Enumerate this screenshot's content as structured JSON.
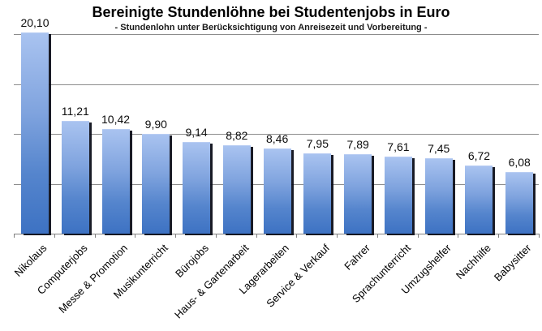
{
  "chart_data": {
    "type": "bar",
    "title": "Bereinigte Stundenlöhne bei Studentenjobs in Euro",
    "subtitle": "- Stundenlohn unter Berücksichtigung von Anreisezeit und Vorbereitung -",
    "categories": [
      "Nikolaus",
      "Computerjobs",
      "Messe & Promotion",
      "Musikunterricht",
      "Bürojobs",
      "Haus- & Gartenarbeit",
      "Lagerarbeiten",
      "Service & Verkauf",
      "Fahrer",
      "Sprachunterricht",
      "Umzugshelfer",
      "Nachhilfe",
      "Babysitter"
    ],
    "values": [
      20.1,
      11.21,
      10.42,
      9.9,
      9.14,
      8.82,
      8.46,
      7.95,
      7.89,
      7.61,
      7.45,
      6.72,
      6.08
    ],
    "value_labels": [
      "20,10",
      "11,21",
      "10,42",
      "9,90",
      "9,14",
      "8,82",
      "8,46",
      "7,95",
      "7,89",
      "7,61",
      "7,45",
      "6,72",
      "6,08"
    ],
    "xlabel": "",
    "ylabel": "",
    "ylim": [
      0,
      20
    ],
    "gridline_step": 5,
    "grid": true,
    "legend": false,
    "y_tick_labels_shown": false,
    "colors": {
      "bar_gradient_top": "#a9c3f0",
      "bar_gradient_bottom": "#3d72c3",
      "bar_shadow": "#000000",
      "gridline": "#8c8c8c",
      "axis": "#808080",
      "text": "#000000",
      "background": "#ffffff"
    }
  }
}
